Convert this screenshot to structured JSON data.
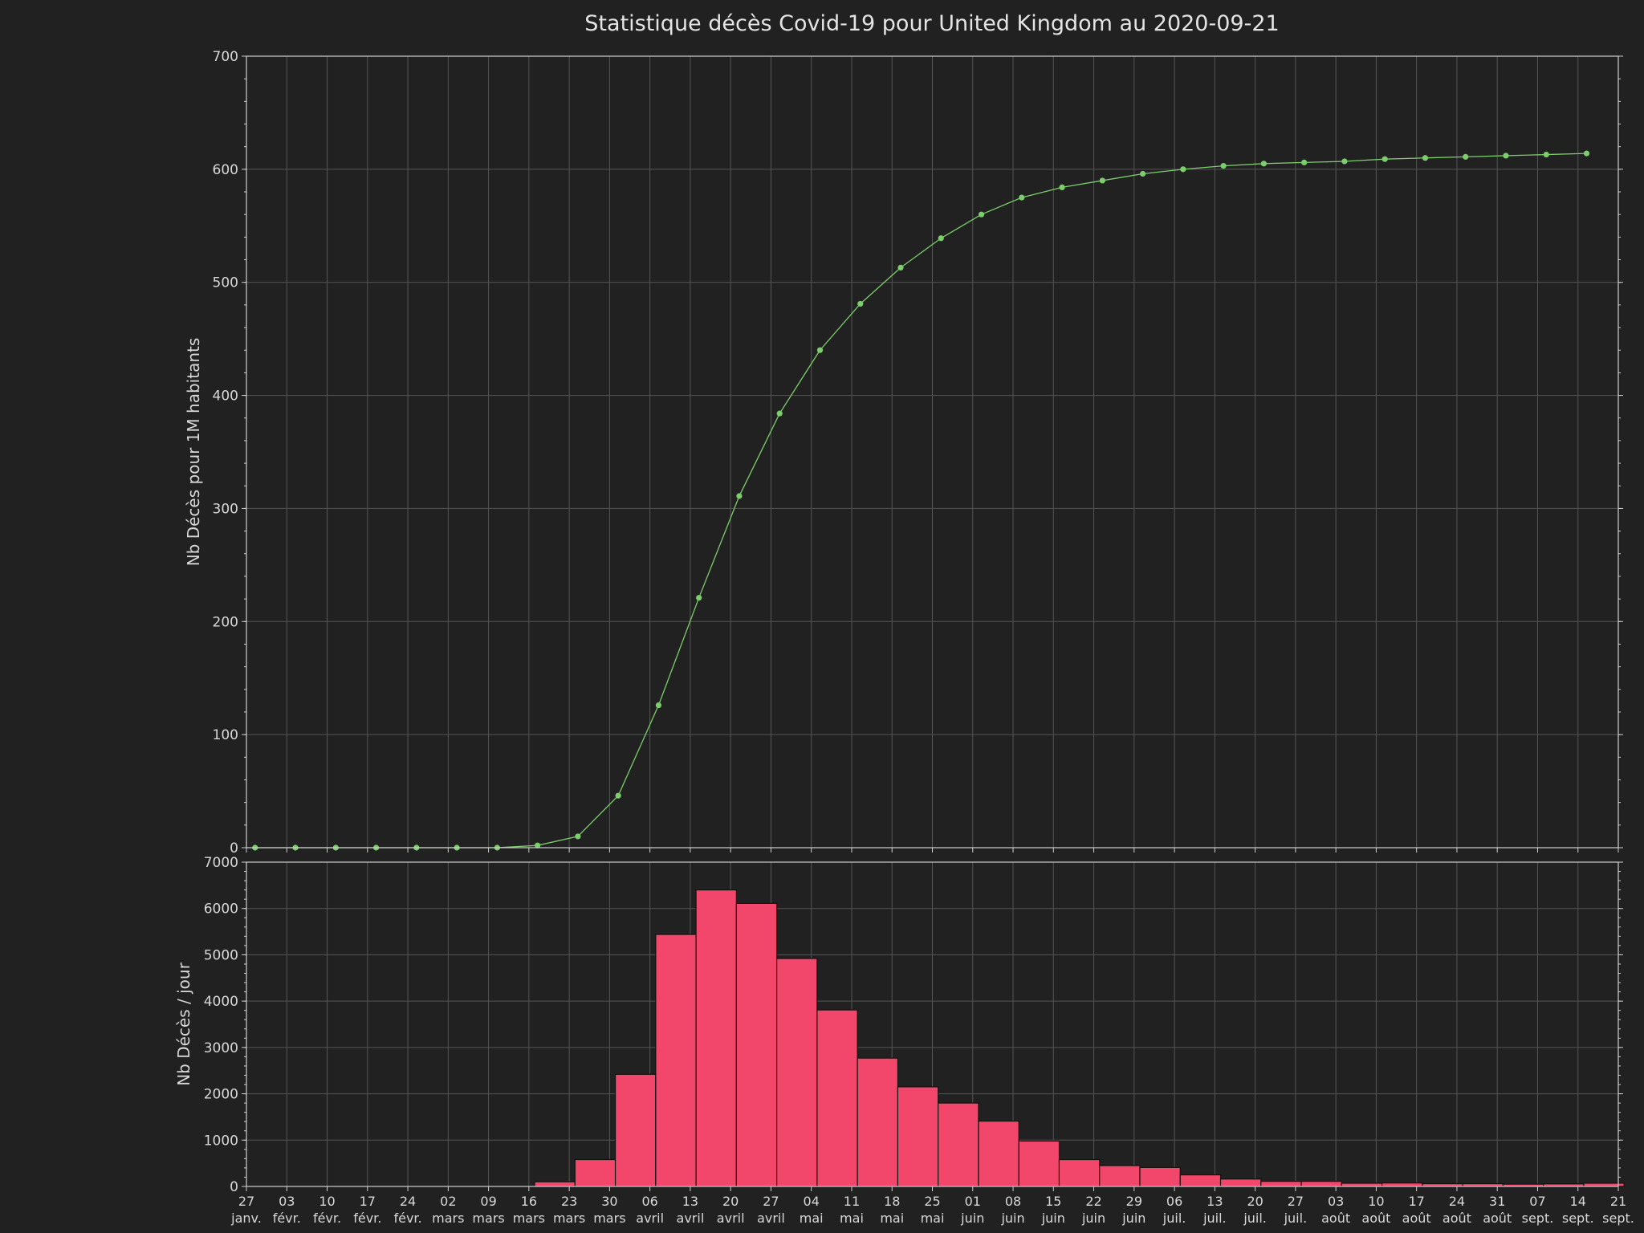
{
  "title": "Statistique décès Covid-19 pour United Kingdom au 2020-09-21",
  "colors": {
    "background": "#212121",
    "grid": "#555555",
    "frame": "#d0d0d0",
    "text": "#d8d8d8",
    "line": "#7ccd6b",
    "bar": "#f2476a",
    "bar_edge": "#111111"
  },
  "x_ticks": [
    [
      "27",
      "janv."
    ],
    [
      "03",
      "févr."
    ],
    [
      "10",
      "févr."
    ],
    [
      "17",
      "févr."
    ],
    [
      "24",
      "févr."
    ],
    [
      "02",
      "mars"
    ],
    [
      "09",
      "mars"
    ],
    [
      "16",
      "mars"
    ],
    [
      "23",
      "mars"
    ],
    [
      "30",
      "mars"
    ],
    [
      "06",
      "avril"
    ],
    [
      "13",
      "avril"
    ],
    [
      "20",
      "avril"
    ],
    [
      "27",
      "avril"
    ],
    [
      "04",
      "mai"
    ],
    [
      "11",
      "mai"
    ],
    [
      "18",
      "mai"
    ],
    [
      "25",
      "mai"
    ],
    [
      "01",
      "juin"
    ],
    [
      "08",
      "juin"
    ],
    [
      "15",
      "juin"
    ],
    [
      "22",
      "juin"
    ],
    [
      "29",
      "juin"
    ],
    [
      "06",
      "juil."
    ],
    [
      "13",
      "juil."
    ],
    [
      "20",
      "juil."
    ],
    [
      "27",
      "juil."
    ],
    [
      "03",
      "août"
    ],
    [
      "10",
      "août"
    ],
    [
      "17",
      "août"
    ],
    [
      "24",
      "août"
    ],
    [
      "31",
      "août"
    ],
    [
      "07",
      "sept."
    ],
    [
      "14",
      "sept."
    ],
    [
      "21",
      "sept."
    ]
  ],
  "chart_data": [
    {
      "type": "line",
      "ylabel": "Nb Décès pour 1M habitants",
      "ylim": [
        0,
        700
      ],
      "yticks": [
        0,
        100,
        200,
        300,
        400,
        500,
        600,
        700
      ],
      "grid": true,
      "x": [
        "2020-01-27",
        "2020-02-03",
        "2020-02-10",
        "2020-02-17",
        "2020-02-24",
        "2020-03-02",
        "2020-03-09",
        "2020-03-16",
        "2020-03-23",
        "2020-03-30",
        "2020-04-06",
        "2020-04-13",
        "2020-04-20",
        "2020-04-27",
        "2020-05-04",
        "2020-05-11",
        "2020-05-18",
        "2020-05-25",
        "2020-06-01",
        "2020-06-08",
        "2020-06-15",
        "2020-06-22",
        "2020-06-29",
        "2020-07-06",
        "2020-07-13",
        "2020-07-20",
        "2020-07-27",
        "2020-08-03",
        "2020-08-10",
        "2020-08-17",
        "2020-08-24",
        "2020-08-31",
        "2020-09-07",
        "2020-09-14"
      ],
      "series": [
        {
          "values": [
            0,
            0,
            0,
            0,
            0,
            0,
            0,
            2,
            10,
            46,
            126,
            221,
            311,
            384,
            440,
            481,
            513,
            539,
            560,
            575,
            584,
            590,
            596,
            600,
            603,
            605,
            606,
            607,
            609,
            610,
            611,
            612,
            613,
            614
          ]
        }
      ]
    },
    {
      "type": "bar",
      "ylabel": "Nb Décès / jour",
      "ylim": [
        0,
        7000
      ],
      "yticks": [
        0,
        1000,
        2000,
        3000,
        4000,
        5000,
        6000,
        7000
      ],
      "grid": true,
      "x_start": [
        "2020-01-27",
        "2020-02-03",
        "2020-02-10",
        "2020-02-17",
        "2020-02-24",
        "2020-03-02",
        "2020-03-09",
        "2020-03-16",
        "2020-03-23",
        "2020-03-30",
        "2020-04-06",
        "2020-04-13",
        "2020-04-20",
        "2020-04-27",
        "2020-05-04",
        "2020-05-11",
        "2020-05-18",
        "2020-05-25",
        "2020-06-01",
        "2020-06-08",
        "2020-06-15",
        "2020-06-22",
        "2020-06-29",
        "2020-07-06",
        "2020-07-13",
        "2020-07-20",
        "2020-07-27",
        "2020-08-03",
        "2020-08-10",
        "2020-08-17",
        "2020-08-24",
        "2020-08-31",
        "2020-09-07",
        "2020-09-14"
      ],
      "values": [
        0,
        0,
        0,
        0,
        0,
        0,
        0,
        100,
        580,
        2420,
        5440,
        6400,
        6110,
        4920,
        3810,
        2770,
        2150,
        1800,
        1410,
        980,
        580,
        450,
        410,
        250,
        160,
        110,
        110,
        70,
        75,
        60,
        60,
        50,
        55,
        70
      ]
    }
  ]
}
